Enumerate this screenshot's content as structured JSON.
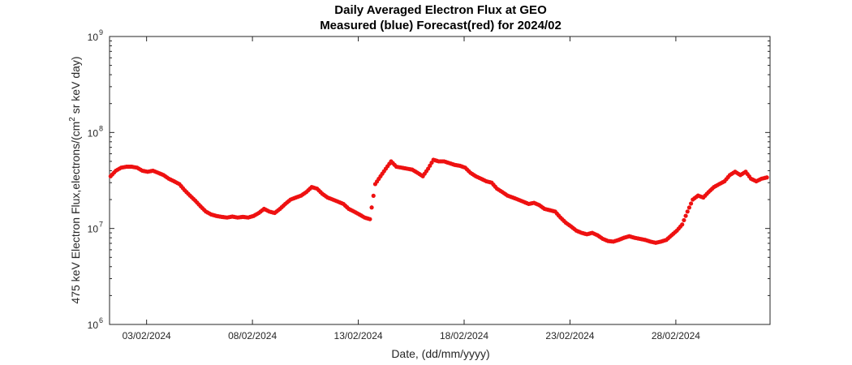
{
  "chart_data": {
    "type": "scatter",
    "title": "Daily Averaged Electron Flux at GEO",
    "subtitle": "Measured (blue) Forecast(red) for 2024/02",
    "xlabel": "Date, (dd/mm/yyyy)",
    "ylabel": "475 keV Electron Flux,electrons/(cm",
    "ylabel_sup": "2",
    "ylabel_tail": " sr keV day)",
    "yscale": "log",
    "ylim": [
      1000000,
      1000000000
    ],
    "xlim_days": [
      1.3,
      32.0
    ],
    "x_ticks": [
      {
        "day": 3,
        "label": "03/02/2024"
      },
      {
        "day": 8,
        "label": "08/02/2024"
      },
      {
        "day": 13,
        "label": "13/02/2024"
      },
      {
        "day": 18,
        "label": "18/02/2024"
      },
      {
        "day": 23,
        "label": "23/02/2024"
      },
      {
        "day": 28,
        "label": "28/02/2024"
      }
    ],
    "y_ticks": [
      {
        "base": "10",
        "exp": "6",
        "value": 1000000
      },
      {
        "base": "10",
        "exp": "7",
        "value": 10000000
      },
      {
        "base": "10",
        "exp": "8",
        "value": 100000000
      },
      {
        "base": "10",
        "exp": "9",
        "value": 1000000000
      }
    ],
    "grid": false,
    "marker_color": "#ee1111",
    "series": [
      {
        "name": "Forecast",
        "color": "#ee1111",
        "points": [
          [
            1.3,
            35000000.0
          ],
          [
            1.55,
            40000000.0
          ],
          [
            1.8,
            43000000.0
          ],
          [
            2.05,
            44000000.0
          ],
          [
            2.3,
            44000000.0
          ],
          [
            2.55,
            43000000.0
          ],
          [
            2.8,
            40000000.0
          ],
          [
            3.05,
            39000000.0
          ],
          [
            3.3,
            40000000.0
          ],
          [
            3.55,
            38000000.0
          ],
          [
            3.8,
            36000000.0
          ],
          [
            4.05,
            33000000.0
          ],
          [
            4.3,
            31000000.0
          ],
          [
            4.55,
            29000000.0
          ],
          [
            4.8,
            25000000.0
          ],
          [
            5.05,
            22000000.0
          ],
          [
            5.3,
            19500000.0
          ],
          [
            5.55,
            17000000.0
          ],
          [
            5.8,
            15000000.0
          ],
          [
            6.05,
            14000000.0
          ],
          [
            6.3,
            13500000.0
          ],
          [
            6.55,
            13200000.0
          ],
          [
            6.8,
            13000000.0
          ],
          [
            7.05,
            13300000.0
          ],
          [
            7.3,
            13000000.0
          ],
          [
            7.55,
            13200000.0
          ],
          [
            7.8,
            13000000.0
          ],
          [
            8.05,
            13500000.0
          ],
          [
            8.3,
            14500000.0
          ],
          [
            8.55,
            16000000.0
          ],
          [
            8.8,
            15000000.0
          ],
          [
            9.05,
            14500000.0
          ],
          [
            9.3,
            16000000.0
          ],
          [
            9.55,
            18000000.0
          ],
          [
            9.8,
            20000000.0
          ],
          [
            10.05,
            21000000.0
          ],
          [
            10.3,
            22000000.0
          ],
          [
            10.55,
            24000000.0
          ],
          [
            10.8,
            27000000.0
          ],
          [
            11.05,
            26000000.0
          ],
          [
            11.3,
            23000000.0
          ],
          [
            11.55,
            21000000.0
          ],
          [
            11.8,
            20000000.0
          ],
          [
            12.05,
            19000000.0
          ],
          [
            12.3,
            18000000.0
          ],
          [
            12.55,
            16000000.0
          ],
          [
            12.8,
            15000000.0
          ],
          [
            13.05,
            14000000.0
          ],
          [
            13.3,
            13000000.0
          ],
          [
            13.55,
            12500000.0
          ],
          [
            13.8,
            29000000.0
          ],
          [
            14.05,
            35000000.0
          ],
          [
            14.3,
            42000000.0
          ],
          [
            14.55,
            50000000.0
          ],
          [
            14.8,
            44000000.0
          ],
          [
            15.05,
            43000000.0
          ],
          [
            15.3,
            42000000.0
          ],
          [
            15.55,
            41000000.0
          ],
          [
            15.8,
            38000000.0
          ],
          [
            16.05,
            35000000.0
          ],
          [
            16.3,
            42000000.0
          ],
          [
            16.55,
            52000000.0
          ],
          [
            16.8,
            50000000.0
          ],
          [
            17.05,
            50000000.0
          ],
          [
            17.3,
            48000000.0
          ],
          [
            17.55,
            46000000.0
          ],
          [
            17.8,
            45000000.0
          ],
          [
            18.05,
            43000000.0
          ],
          [
            18.3,
            38000000.0
          ],
          [
            18.55,
            35000000.0
          ],
          [
            18.8,
            33000000.0
          ],
          [
            19.05,
            31000000.0
          ],
          [
            19.3,
            30000000.0
          ],
          [
            19.55,
            26000000.0
          ],
          [
            19.8,
            24000000.0
          ],
          [
            20.05,
            22000000.0
          ],
          [
            20.3,
            21000000.0
          ],
          [
            20.55,
            20000000.0
          ],
          [
            20.8,
            19000000.0
          ],
          [
            21.05,
            18000000.0
          ],
          [
            21.3,
            18500000.0
          ],
          [
            21.55,
            17500000.0
          ],
          [
            21.8,
            16000000.0
          ],
          [
            22.05,
            15500000.0
          ],
          [
            22.3,
            15000000.0
          ],
          [
            22.55,
            13000000.0
          ],
          [
            22.8,
            11500000.0
          ],
          [
            23.05,
            10500000.0
          ],
          [
            23.3,
            9500000.0
          ],
          [
            23.55,
            9000000.0
          ],
          [
            23.8,
            8700000.0
          ],
          [
            24.05,
            9000000.0
          ],
          [
            24.3,
            8500000.0
          ],
          [
            24.55,
            7800000.0
          ],
          [
            24.8,
            7400000.0
          ],
          [
            25.05,
            7300000.0
          ],
          [
            25.3,
            7600000.0
          ],
          [
            25.55,
            8000000.0
          ],
          [
            25.8,
            8300000.0
          ],
          [
            26.05,
            8000000.0
          ],
          [
            26.3,
            7800000.0
          ],
          [
            26.55,
            7600000.0
          ],
          [
            26.8,
            7300000.0
          ],
          [
            27.05,
            7100000.0
          ],
          [
            27.3,
            7300000.0
          ],
          [
            27.55,
            7600000.0
          ],
          [
            27.8,
            8500000.0
          ],
          [
            28.05,
            9500000.0
          ],
          [
            28.3,
            11000000.0
          ],
          [
            28.55,
            15000000.0
          ],
          [
            28.8,
            20000000.0
          ],
          [
            29.05,
            22000000.0
          ],
          [
            29.3,
            21000000.0
          ],
          [
            29.55,
            24000000.0
          ],
          [
            29.8,
            27000000.0
          ],
          [
            30.05,
            29000000.0
          ],
          [
            30.3,
            31000000.0
          ],
          [
            30.55,
            36000000.0
          ],
          [
            30.8,
            39000000.0
          ],
          [
            31.05,
            36000000.0
          ],
          [
            31.3,
            39000000.0
          ],
          [
            31.55,
            33000000.0
          ],
          [
            31.8,
            31000000.0
          ],
          [
            32.05,
            33000000.0
          ],
          [
            32.3,
            34000000.0
          ]
        ]
      }
    ]
  }
}
